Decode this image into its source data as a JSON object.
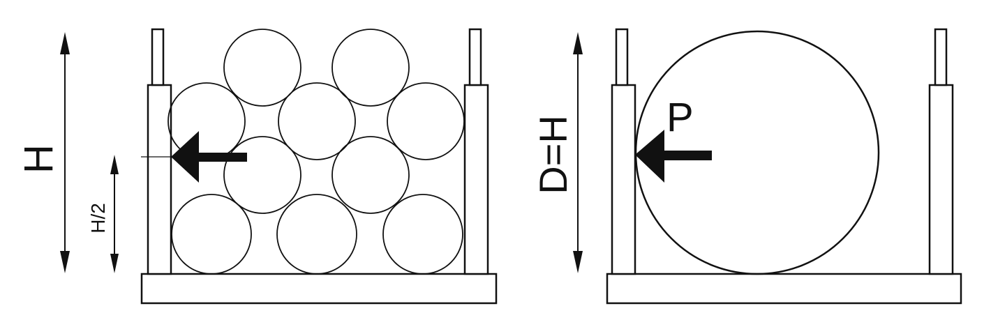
{
  "diagram": {
    "description_labels": {
      "left_height": "H",
      "left_half_height": "H/2",
      "right_diameter": "D=H",
      "right_force": "P"
    },
    "colors": {
      "stroke": "#111111",
      "fill": "#ffffff"
    },
    "panels": [
      {
        "name": "stacked-rollers-rack",
        "roller_count": 10
      },
      {
        "name": "single-drum-rack",
        "roller_count": 1
      }
    ]
  }
}
